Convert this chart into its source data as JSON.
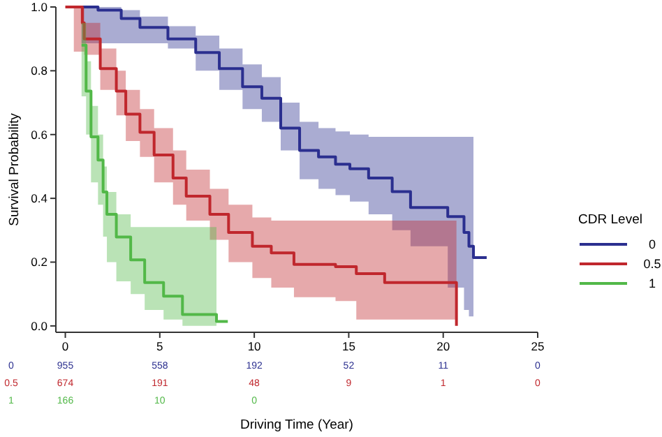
{
  "chart_data": {
    "type": "step",
    "xlabel": "Driving  Time (Year)",
    "ylabel": "Survival  Probability",
    "legend_title": "CDR Level",
    "legend": "right",
    "xlim": [
      -0.5,
      25
    ],
    "ylim": [
      -0.02,
      1.0
    ],
    "xticks": [
      0,
      5,
      10,
      15,
      20,
      25
    ],
    "yticks": [
      {
        "value": 0,
        "label": "0.0"
      },
      {
        "value": 0.2,
        "label": "0.2"
      },
      {
        "value": 0.4,
        "label": "0.4"
      },
      {
        "value": 0.6,
        "label": "0.6"
      },
      {
        "value": 0.8,
        "label": "0.8"
      },
      {
        "value": 1,
        "label": "1.0"
      }
    ],
    "series": [
      {
        "name": "0",
        "color": "#2b2f8f",
        "x": [
          0.86,
          1.73,
          2.96,
          3.95,
          5.43,
          6.9,
          8.15,
          9.38,
          10.4,
          11.4,
          12.4,
          13.4,
          14.3,
          15.06,
          16.05,
          17.3,
          18.27,
          20.24,
          21.1,
          21.36,
          21.6,
          22.3
        ],
        "values": [
          1.0,
          0.99,
          0.964,
          0.936,
          0.9,
          0.857,
          0.807,
          0.75,
          0.714,
          0.62,
          0.55,
          0.53,
          0.507,
          0.493,
          0.464,
          0.421,
          0.371,
          0.343,
          0.293,
          0.25,
          0.214,
          0.214
        ],
        "upper": [
          1.0,
          1.0,
          0.99,
          0.97,
          0.94,
          0.91,
          0.87,
          0.82,
          0.78,
          0.7,
          0.64,
          0.62,
          0.61,
          0.6,
          0.593,
          0.593,
          0.593,
          0.593,
          0.593,
          0.593,
          0.593,
          null
        ],
        "lower": [
          0.886,
          0.886,
          0.886,
          0.886,
          0.87,
          0.8,
          0.74,
          0.68,
          0.64,
          0.55,
          0.46,
          0.43,
          0.41,
          0.39,
          0.35,
          0.3,
          0.25,
          0.12,
          0.05,
          0.03,
          0.02,
          null
        ]
      },
      {
        "name": "0.5",
        "color": "#c0272d",
        "x": [
          0,
          0.45,
          0.9,
          1,
          1.85,
          2.7,
          3.2,
          3.95,
          4.7,
          5.7,
          6.4,
          7.65,
          8.64,
          9.9,
          10.9,
          12.1,
          14.3,
          15.4,
          16.9,
          20.7
        ],
        "values": [
          1.0,
          1.0,
          0.95,
          0.9,
          0.807,
          0.736,
          0.664,
          0.607,
          0.536,
          0.464,
          0.407,
          0.35,
          0.293,
          0.25,
          0.229,
          0.193,
          0.186,
          0.164,
          0.136,
          0.0
        ],
        "upper": [
          null,
          1.0,
          1.0,
          0.95,
          0.87,
          0.8,
          0.74,
          0.68,
          0.62,
          0.55,
          0.49,
          0.43,
          0.38,
          0.34,
          0.33,
          0.33,
          0.33,
          0.33,
          0.33,
          0.33
        ],
        "lower": [
          null,
          0.86,
          0.86,
          0.85,
          0.74,
          0.66,
          0.58,
          0.53,
          0.45,
          0.38,
          0.33,
          0.27,
          0.2,
          0.15,
          0.12,
          0.09,
          0.078,
          0.02,
          0.02,
          0.02
        ]
      },
      {
        "name": "1",
        "color": "#52b848",
        "x": [
          0.86,
          1.1,
          1.36,
          1.73,
          2,
          2.2,
          2.7,
          3.46,
          4.2,
          5.2,
          6.2,
          8,
          8.6
        ],
        "values": [
          0.88,
          0.736,
          0.593,
          0.52,
          0.42,
          0.35,
          0.279,
          0.207,
          0.136,
          0.093,
          0.036,
          0.014,
          0.014
        ],
        "upper": [
          0.95,
          0.83,
          0.69,
          0.6,
          0.5,
          0.42,
          0.35,
          0.31,
          0.31,
          0.31,
          0.31,
          0.31,
          null
        ],
        "lower": [
          0.72,
          0.6,
          0.45,
          0.38,
          0.28,
          0.2,
          0.14,
          0.1,
          0.05,
          0.02,
          0.0,
          0.0,
          null
        ]
      }
    ],
    "annotations": [
      "0",
      "955",
      "558",
      "192",
      "52",
      "11",
      "0",
      "0.5",
      "674",
      "191",
      "48",
      "9",
      "1",
      "0",
      "1",
      "166",
      "10",
      "0"
    ]
  }
}
